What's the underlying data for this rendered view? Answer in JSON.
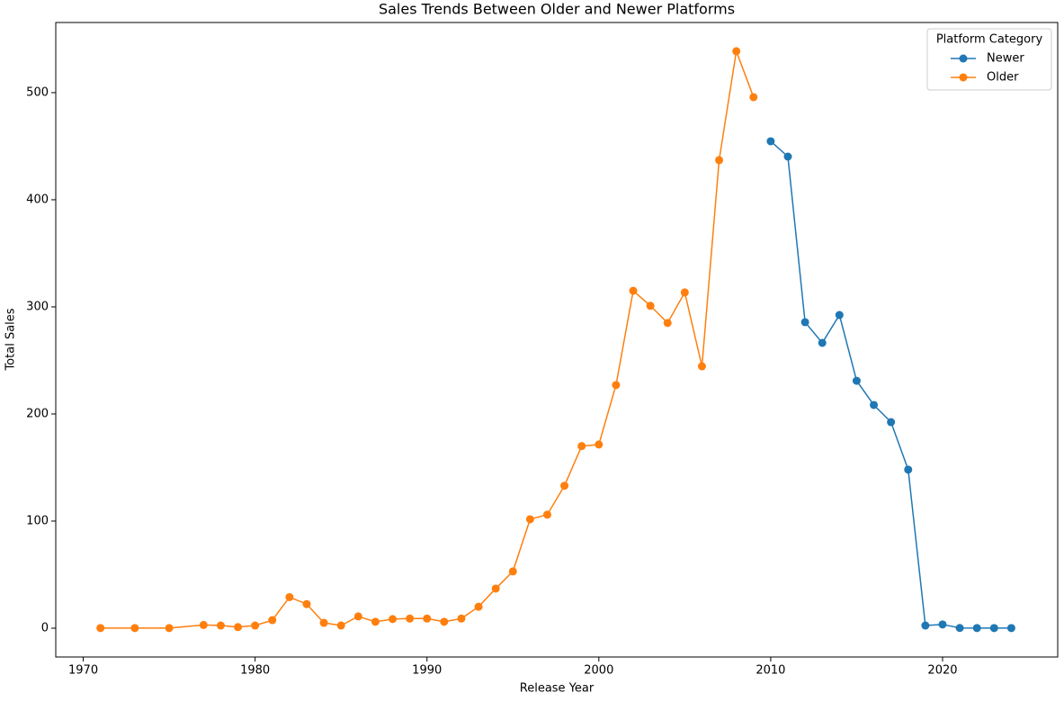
{
  "chart_data": {
    "type": "line",
    "title": "Sales Trends Between Older and Newer Platforms",
    "x_label": "Release Year",
    "y_label": "Total Sales",
    "legend_title": "Platform Category",
    "legend_position": "upper right",
    "series": [
      {
        "name": "Newer",
        "color": "#1f77b4",
        "x": [
          2010,
          2011,
          2012,
          2013,
          2014,
          2015,
          2016,
          2017,
          2018,
          2019,
          2020,
          2021,
          2022,
          2023,
          2024
        ],
        "values": [
          454.6,
          440.3,
          285.7,
          266.4,
          292.4,
          231,
          208.4,
          192.4,
          148,
          2.5,
          3.5,
          0.2,
          0.1,
          0.1,
          0.1
        ]
      },
      {
        "name": "Older",
        "color": "#ff7f0e",
        "x": [
          1971,
          1973,
          1975,
          1977,
          1978,
          1979,
          1980,
          1981,
          1982,
          1983,
          1984,
          1985,
          1986,
          1987,
          1988,
          1989,
          1990,
          1991,
          1992,
          1993,
          1994,
          1995,
          1996,
          1997,
          1998,
          1999,
          2000,
          2001,
          2002,
          2003,
          2004,
          2005,
          2006,
          2007,
          2008,
          2009
        ],
        "values": [
          0.1,
          0.1,
          0.1,
          3,
          2.5,
          1,
          2.5,
          7.5,
          29,
          22.5,
          5,
          2.5,
          11,
          6,
          8.5,
          9,
          9,
          6,
          9,
          20,
          37,
          53,
          101.7,
          106,
          133,
          170,
          171.5,
          227,
          315,
          301,
          285,
          313.5,
          244.5,
          437,
          538.7,
          495.8
        ]
      }
    ],
    "xlim": [
      1968.4,
      2026.7
    ],
    "xticks": [
      1970,
      1980,
      1990,
      2000,
      2010,
      2020
    ],
    "ylim": [
      -26.9,
      565.5
    ],
    "yticks": [
      0,
      100,
      200,
      300,
      400,
      500
    ]
  }
}
